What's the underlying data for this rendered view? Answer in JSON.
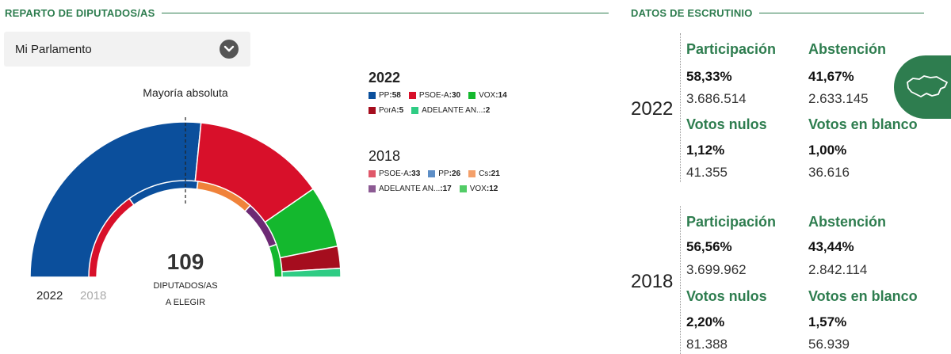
{
  "sections": {
    "left_title": "REPARTO DE DIPUTADOS/AS",
    "right_title": "DATOS DE ESCRUTINIO"
  },
  "dropdown": {
    "selected": "Mi Parlamento"
  },
  "chart_data": {
    "type": "pie",
    "majority_label": "Mayoría absoluta",
    "total_seats": "109",
    "total_label_line1": "DIPUTADOS/AS",
    "total_label_line2": "A ELEGIR",
    "year_toggle": [
      "2022",
      "2018"
    ],
    "series": [
      {
        "name": "2022",
        "categories": [
          "PP",
          "PSOE-A",
          "VOX",
          "PorA",
          "ADELANTE AN..."
        ],
        "values": [
          58,
          30,
          14,
          5,
          2
        ],
        "colors": [
          "#0b4f9c",
          "#d8102a",
          "#14b82e",
          "#a50d1e",
          "#2fcc84"
        ]
      },
      {
        "name": "2018",
        "categories": [
          "PSOE-A",
          "PP",
          "Cs",
          "ADELANTE AN...",
          "VOX"
        ],
        "values": [
          33,
          26,
          21,
          17,
          12
        ],
        "colors": [
          "#d8102a",
          "#0b4f9c",
          "#f0823a",
          "#6d2a74",
          "#14b82e"
        ]
      }
    ],
    "legend_colors": {
      "2022": [
        "#0b4f9c",
        "#d8102a",
        "#14b82e",
        "#a50d1e",
        "#2fcc84"
      ],
      "2018": [
        "#e0586a",
        "#5d8ec6",
        "#f4a06a",
        "#8c5a93",
        "#52cc66"
      ]
    }
  },
  "scrutiny": {
    "y2022": {
      "year": "2022",
      "participacion": {
        "label": "Participación",
        "pct": "58,33%",
        "num": "3.686.514"
      },
      "abstencion": {
        "label": "Abstención",
        "pct": "41,67%",
        "num": "2.633.145"
      },
      "nulos": {
        "label": "Votos nulos",
        "pct": "1,12%",
        "num": "41.355"
      },
      "blanco": {
        "label": "Votos en blanco",
        "pct": "1,00%",
        "num": "36.616"
      }
    },
    "y2018": {
      "year": "2018",
      "participacion": {
        "label": "Participación",
        "pct": "56,56%",
        "num": "3.699.962"
      },
      "abstencion": {
        "label": "Abstención",
        "pct": "43,44%",
        "num": "2.842.114"
      },
      "nulos": {
        "label": "Votos nulos",
        "pct": "2,20%",
        "num": "81.388"
      },
      "blanco": {
        "label": "Votos en blanco",
        "pct": "1,57%",
        "num": "56.939"
      }
    }
  },
  "icons": {
    "dropdown": "chevron-down-icon",
    "map": "andalusia-map-icon"
  },
  "colors": {
    "accent": "#2e7d4f"
  }
}
